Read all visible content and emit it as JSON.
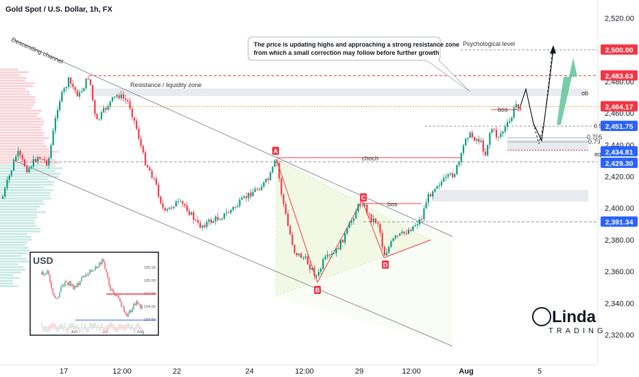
{
  "header": {
    "symbol": "Gold Spot / U.S. Dollar, 1h, FX"
  },
  "colors": {
    "up": "#089981",
    "down": "#f23645",
    "red_tag": "#f23645",
    "blue_tag": "#2962ff",
    "green_arrow": "#5fc49a"
  },
  "chart_data": {
    "type": "candlestick",
    "ylim": [
      2300,
      2530
    ],
    "y_ticks": [
      2320,
      2340,
      2360,
      2380,
      2400,
      2420,
      2440,
      2460,
      2480,
      2500,
      2520
    ],
    "y_tick_labels": [
      "2,320.00",
      "2,340.00",
      "2,360.00",
      "2,380.00",
      "2,400.00",
      "2,420.00",
      "2,440.00",
      "2,460.00",
      "2,480.00",
      "2,500.00",
      "2,520.00"
    ],
    "x_labels": [
      "17",
      "12:00",
      "22",
      "24",
      "12:00",
      "29",
      "12:00",
      "Aug",
      "5"
    ],
    "price_tags": [
      {
        "label": "2,500.00",
        "value": 2500.0,
        "color": "red"
      },
      {
        "label": "2,483.63",
        "value": 2483.63,
        "color": "red"
      },
      {
        "label": "2,464.17",
        "value": 2464.17,
        "color": "red"
      },
      {
        "label": "2,451.75",
        "value": 2451.75,
        "color": "blue"
      },
      {
        "label": "2,434.81",
        "value": 2434.81,
        "color": "blue"
      },
      {
        "label": "2,429.30",
        "value": 2429.3,
        "color": "blue"
      },
      {
        "label": "2,391.34",
        "value": 2391.34,
        "color": "blue"
      }
    ],
    "annotations": {
      "descending_channel": "Descending channel",
      "resistance_zone": "Resistance / liquidity zone",
      "psychological": "Psychological level",
      "choch": "choch",
      "bos_mid": "bos",
      "bos_top": "bos",
      "ob": "ob",
      "fib_05": "0.5",
      "fib_0705": "0.705",
      "fib_079": "0.79",
      "eql": "eql",
      "points": [
        "A",
        "B",
        "C",
        "D"
      ]
    },
    "callout": {
      "line1": "The price is updating highs and approaching a strong resistance zone",
      "line2": "from which a small correction may follow before further growth"
    },
    "inset": {
      "title": "USD",
      "y_labels": [
        "105.50",
        "105.00",
        "104.50",
        "104.00",
        "103.50"
      ],
      "x_labels": [
        "Jun",
        "Jul",
        "Aug"
      ]
    }
  },
  "watermark": {
    "brand": "Linda Trading"
  }
}
